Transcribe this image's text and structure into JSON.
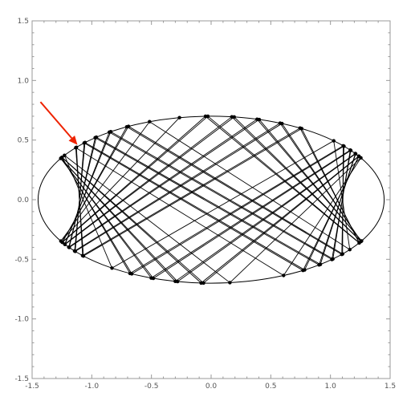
{
  "chart_data": {
    "type": "line",
    "title": "",
    "xlabel": "",
    "ylabel": "",
    "xlim": [
      -1.5,
      1.5
    ],
    "ylim": [
      -1.5,
      1.5
    ],
    "x_ticks": [
      -1.5,
      -1.0,
      -0.5,
      0.0,
      0.5,
      1.0,
      1.5
    ],
    "x_tick_labels": [
      "-1.5",
      "-1.0",
      "-0.5",
      "0.0",
      "0.5",
      "1.0",
      "1.5"
    ],
    "y_ticks": [
      -1.5,
      -1.0,
      -0.5,
      0.0,
      0.5,
      1.0,
      1.5
    ],
    "y_tick_labels": [
      "-1.5",
      "-1.0",
      "-0.5",
      "0.0",
      "0.5",
      "1.0",
      "1.5"
    ],
    "ellipse": {
      "a": 1.45,
      "b": 0.7
    },
    "billiard": {
      "start": [
        -1.13,
        0.44
      ],
      "target": [
        -1.08,
        -0.47
      ],
      "bounces": 72,
      "chord_color": "#000000"
    },
    "annotation_arrow": {
      "from": [
        -1.43,
        0.82
      ],
      "to": [
        -1.12,
        0.46
      ],
      "color": "#ee2200"
    },
    "grid": false,
    "legend": "none"
  }
}
